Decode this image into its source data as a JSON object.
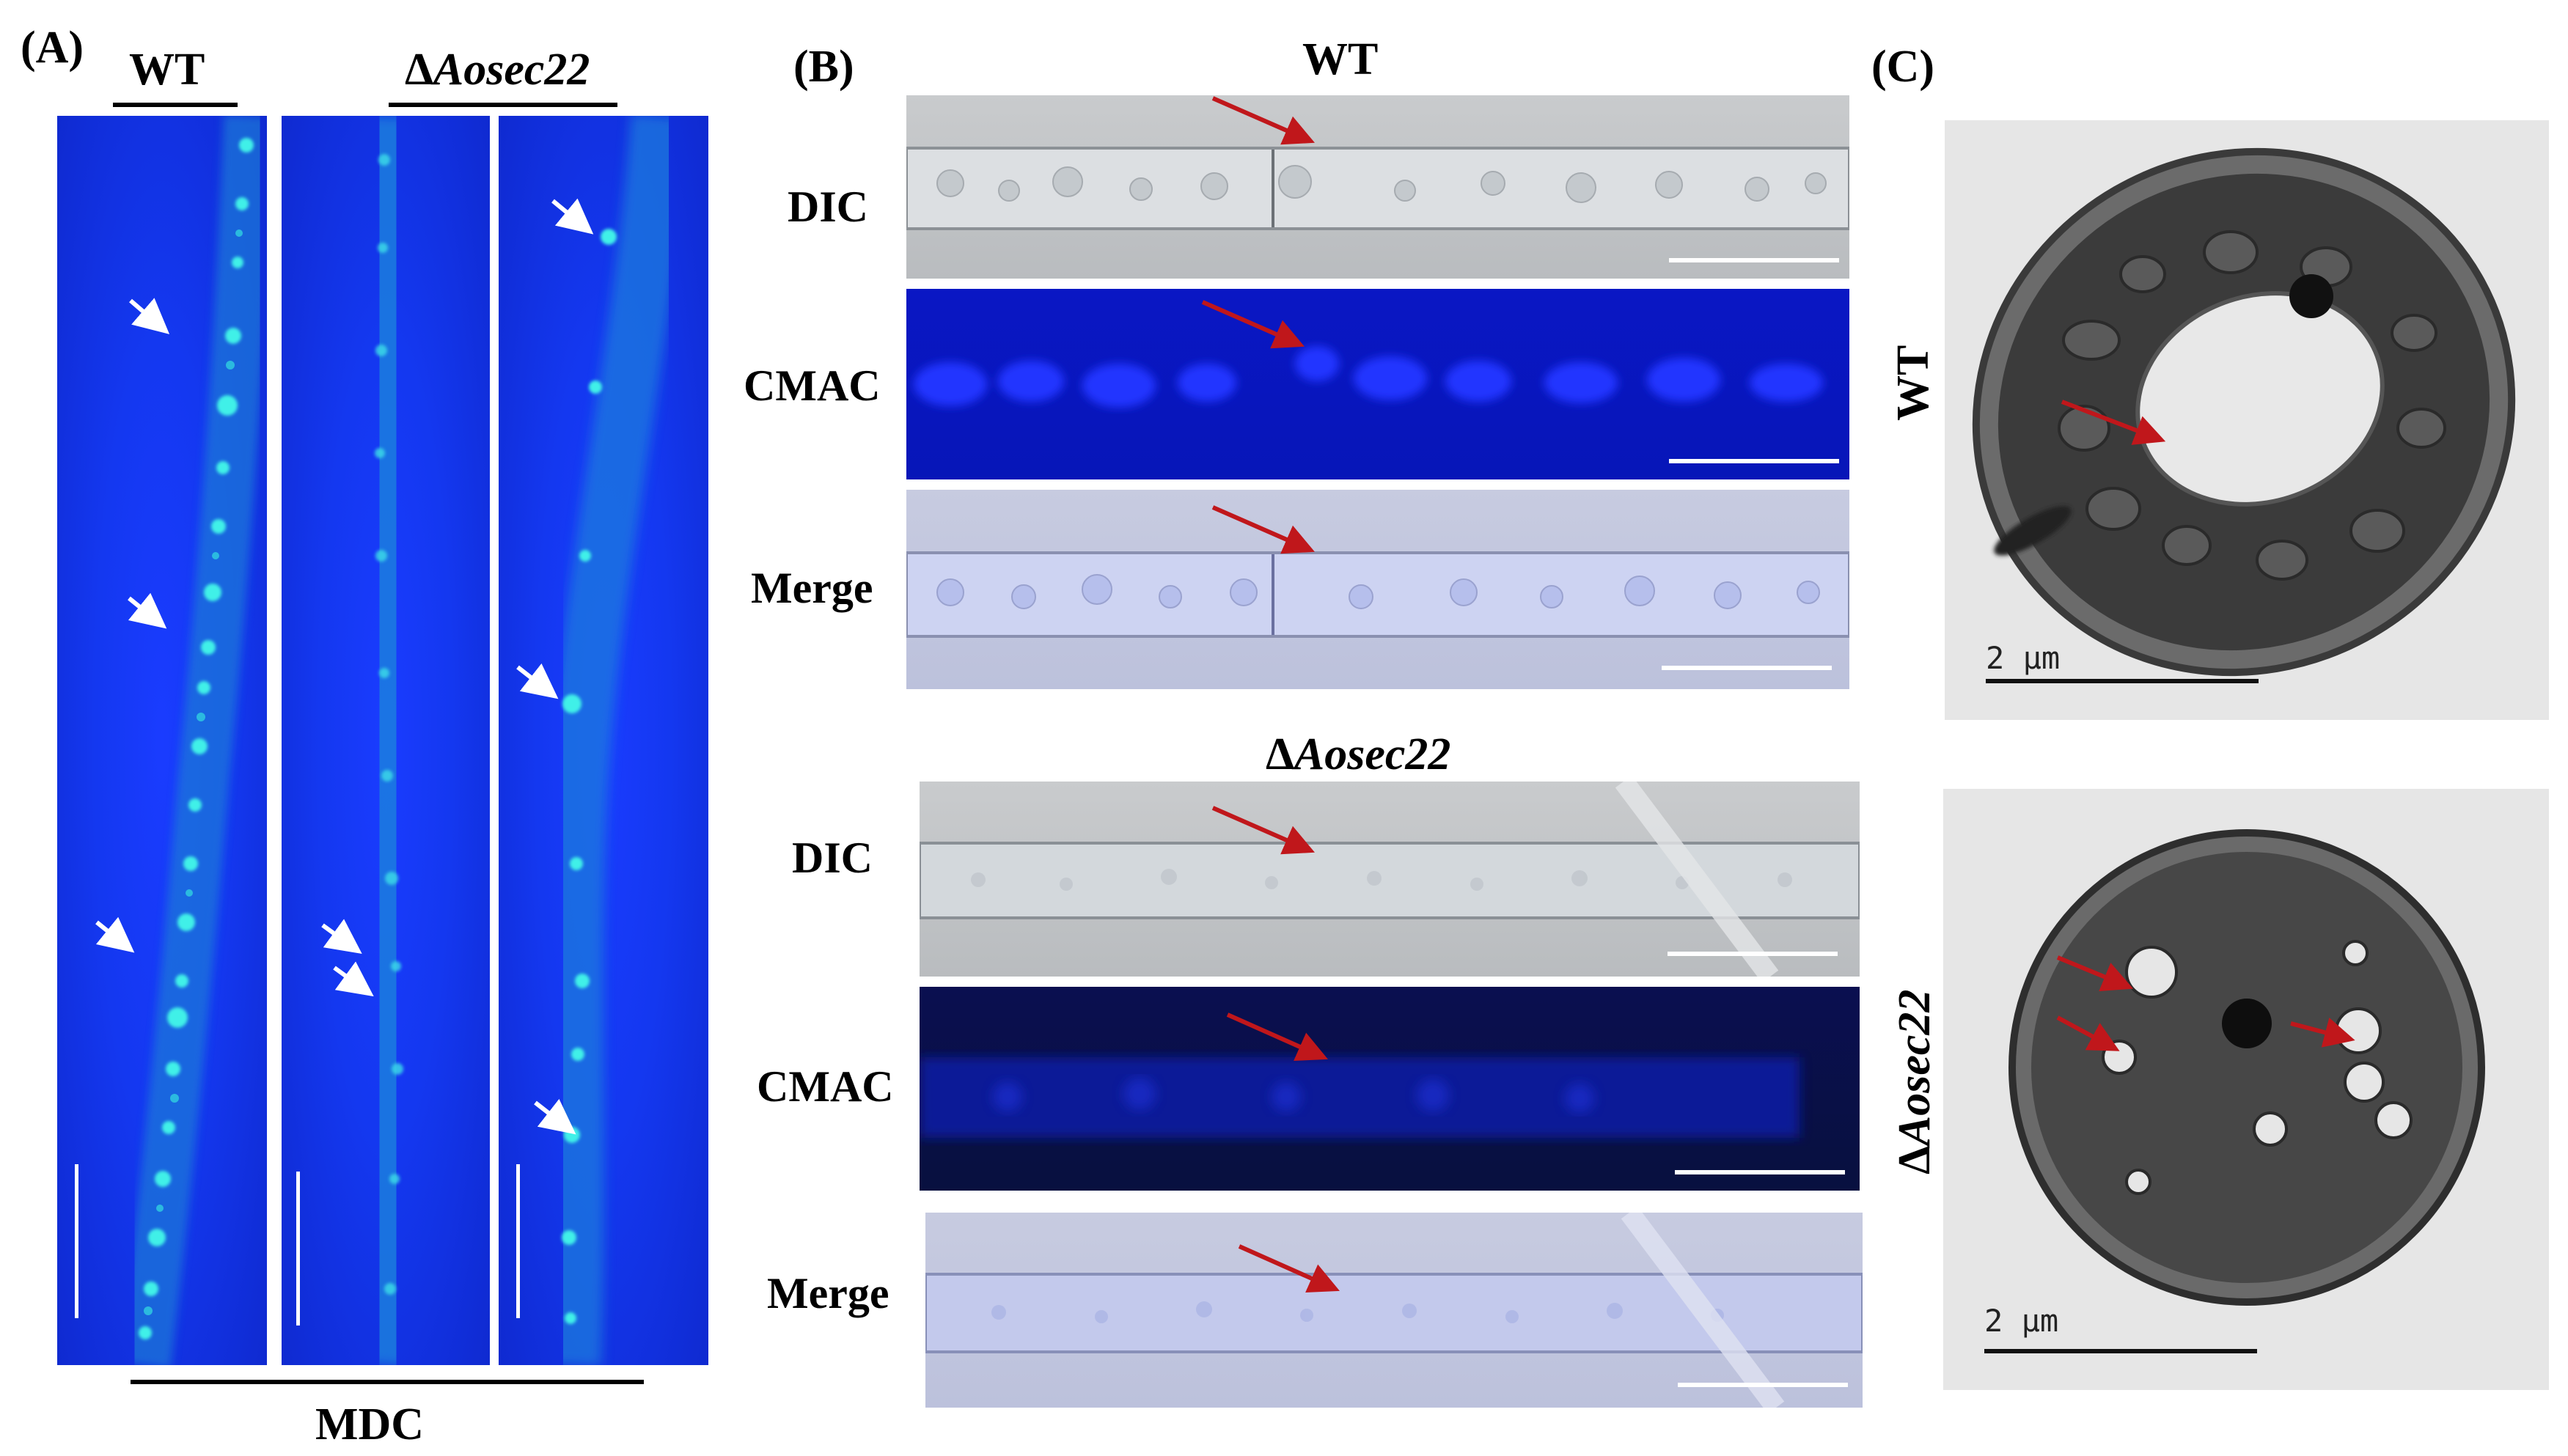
{
  "panel_a": {
    "label": "(A)",
    "wt": "WT",
    "mutant_delta": "Δ",
    "mutant_name": "Aosec22",
    "bottom_label": "MDC"
  },
  "panel_b": {
    "label": "(B)",
    "wt": "WT",
    "mutant_delta": "Δ",
    "mutant_name": "Aosec22",
    "rows": [
      "DIC",
      "CMAC",
      "Merge"
    ]
  },
  "panel_c": {
    "label": "(C)",
    "wt": "WT",
    "mutant_delta": "Δ",
    "mutant_name": "Aosec22",
    "scale_bar": "2 μm"
  },
  "colors": {
    "arrow_white": "#ffffff",
    "arrow_red": "#c0171b",
    "fluorescence_blue": "#1638f0",
    "vesicle_cyan": "#3ff0e8"
  }
}
